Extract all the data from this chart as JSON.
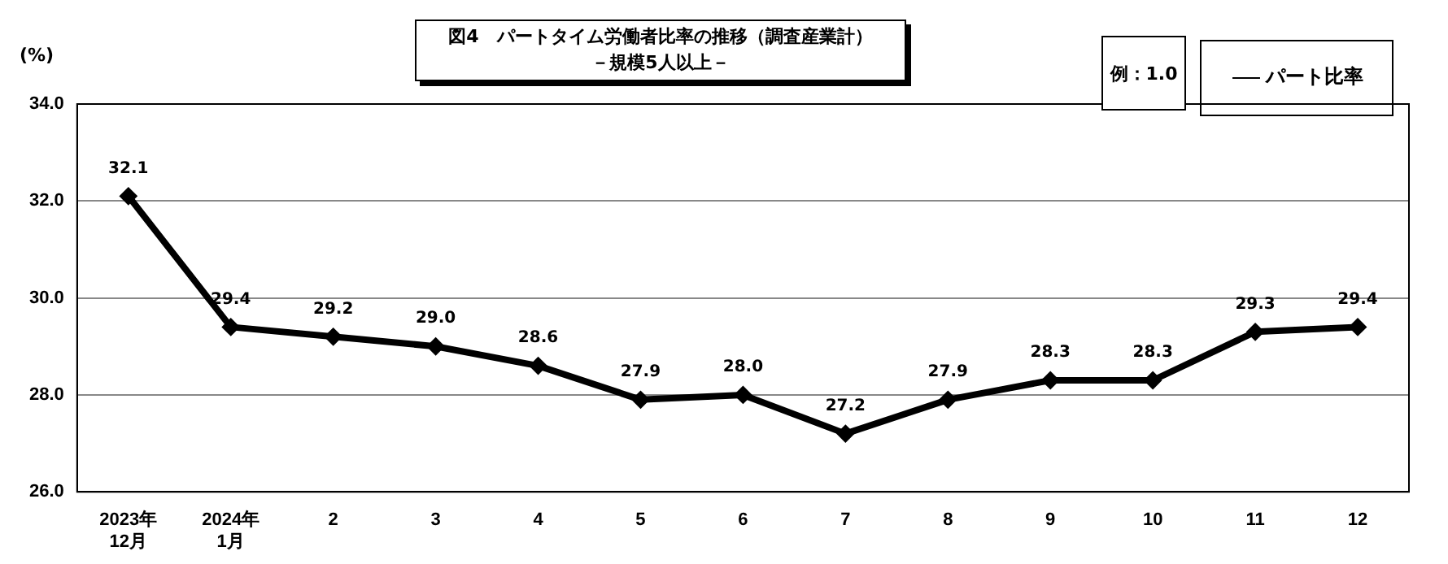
{
  "chart_data": {
    "type": "line",
    "title": "図4　パートタイム労働者比率の推移（調査産業計）",
    "subtitle": "－規模5人以上－",
    "ylabel": "(%)",
    "annotations": [
      "例：1.0"
    ],
    "categories": [
      "2023年\n12月",
      "2024年\n1月",
      "2",
      "3",
      "4",
      "5",
      "6",
      "7",
      "8",
      "9",
      "10",
      "11",
      "12"
    ],
    "series": [
      {
        "name": "パート比率",
        "color": "#000000",
        "values": [
          32.1,
          29.4,
          29.2,
          29.0,
          28.6,
          27.9,
          28.0,
          27.2,
          27.9,
          28.3,
          28.3,
          29.3,
          29.4
        ],
        "value_labels": [
          "32.1",
          "29.4",
          "29.2",
          "29.0",
          "28.6",
          "27.9",
          "28.0",
          "27.2",
          "27.9",
          "28.3",
          "28.3",
          "29.3",
          "29.4"
        ]
      }
    ],
    "ylim": [
      26,
      34
    ],
    "yticks": [
      {
        "value": 26,
        "label": "26.0"
      },
      {
        "value": 28,
        "label": "28.0"
      },
      {
        "value": 30,
        "label": "30.0"
      },
      {
        "value": 32,
        "label": "32.0"
      },
      {
        "value": 34,
        "label": "34.0"
      }
    ],
    "grid": "y",
    "legend": "top right",
    "marker": "diamond",
    "line_style": "solid"
  }
}
